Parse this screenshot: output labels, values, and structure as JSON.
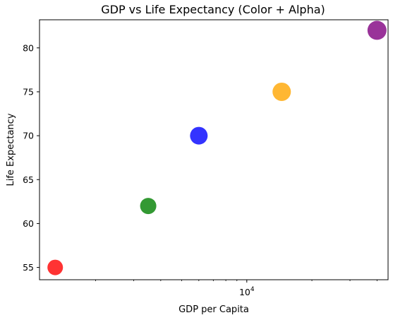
{
  "chart_data": {
    "type": "scatter",
    "title": "GDP vs Life Expectancy (Color + Alpha)",
    "xlabel": "GDP per Capita",
    "ylabel": "Life Expectancy",
    "x_scale": "log",
    "xlim": [
      1100,
      45000
    ],
    "ylim": [
      53.6,
      83.2
    ],
    "x_major_ticks": [
      {
        "value": 10000,
        "base": "10",
        "exponent": "4"
      }
    ],
    "x_minor_ticks": [
      2000,
      3000,
      4000,
      5000,
      6000,
      7000,
      8000,
      9000,
      20000,
      30000,
      40000
    ],
    "y_ticks": [
      {
        "value": 55,
        "label": "55"
      },
      {
        "value": 60,
        "label": "60"
      },
      {
        "value": 65,
        "label": "65"
      },
      {
        "value": 70,
        "label": "70"
      },
      {
        "value": 75,
        "label": "75"
      },
      {
        "value": 80,
        "label": "80"
      }
    ],
    "grid": false,
    "alpha": 0.8,
    "points": [
      {
        "x": 1300,
        "y": 55,
        "color": "#ff0000"
      },
      {
        "x": 3500,
        "y": 62,
        "color": "#008000"
      },
      {
        "x": 6000,
        "y": 70,
        "color": "#0000ff"
      },
      {
        "x": 14500,
        "y": 75,
        "color": "#ffa500"
      },
      {
        "x": 40000,
        "y": 82,
        "color": "#800080"
      }
    ]
  }
}
